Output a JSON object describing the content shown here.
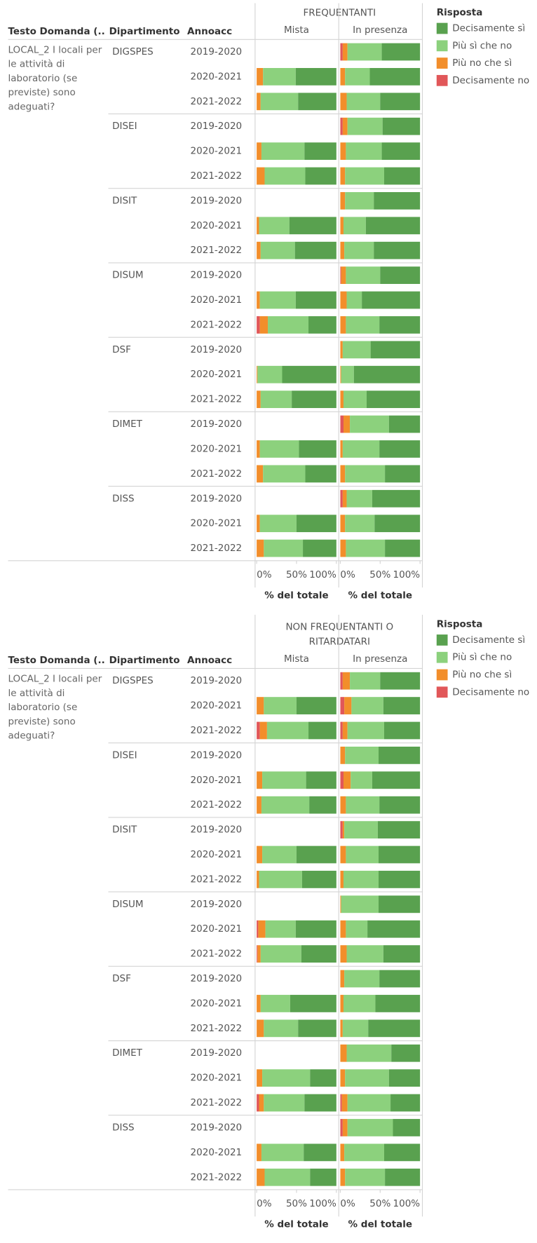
{
  "chart_data": [
    {
      "type": "stacked_bar",
      "title": "FREQUENTANTI",
      "row_headers": [
        "Testo Domanda (..",
        "Dipartimento",
        "Annoacc"
      ],
      "question": "LOCAL_2 I locali per le attività di laboratorio (se previste) sono adeguati?",
      "departments": [
        "DIGSPES",
        "DISEI",
        "DISIT",
        "DISUM",
        "DSF",
        "DIMET",
        "DISS"
      ],
      "years": [
        "2019-2020",
        "2020-2021",
        "2021-2022",
        "2019-2020",
        "2020-2021",
        "2021-2022",
        "2019-2020",
        "2020-2021",
        "2021-2022",
        "2019-2020",
        "2020-2021",
        "2021-2022",
        "2019-2020",
        "2020-2021",
        "2021-2022",
        "2019-2020",
        "2020-2021",
        "2021-2022",
        "2019-2020",
        "2020-2021",
        "2021-2022"
      ],
      "panels": [
        "Mista",
        "In presenza"
      ],
      "legend_title": "Risposta",
      "series": [
        {
          "name": "Decisamente sì",
          "color": "#59a14f",
          "values": [
            [
              null,
              51,
              48,
              null,
              40,
              39,
              null,
              59,
              52,
              null,
              51,
              35,
              null,
              68,
              56,
              null,
              47,
              39,
              null,
              50,
              42
            ],
            [
              48,
              63,
              50,
              47,
              48,
              45,
              58,
              68,
              58,
              50,
              73,
              51,
              62,
              83,
              67,
              39,
              51,
              44,
              60,
              57,
              44
            ]
          ]
        },
        {
          "name": "Più sì che no",
          "color": "#8cd17d",
          "values": [
            [
              null,
              41,
              47,
              null,
              54,
              51,
              null,
              38,
              43,
              null,
              45,
              51,
              null,
              31,
              39,
              null,
              49,
              53,
              null,
              46,
              49
            ],
            [
              43,
              31,
              42,
              44,
              45,
              49,
              36,
              28,
              37,
              43,
              19,
              42,
              35,
              16,
              29,
              49,
              46,
              50,
              32,
              37,
              49
            ]
          ]
        },
        {
          "name": "Più no che sì",
          "color": "#f28e2b",
          "values": [
            [
              null,
              8,
              5,
              null,
              6,
              10,
              null,
              3,
              5,
              null,
              4,
              10,
              null,
              1,
              5,
              null,
              4,
              8,
              null,
              4,
              9
            ],
            [
              6,
              6,
              8,
              6,
              7,
              6,
              6,
              4,
              5,
              6,
              8,
              7,
              3,
              1,
              4,
              8,
              3,
              6,
              5,
              6,
              7
            ]
          ]
        },
        {
          "name": "Decisamente no",
          "color": "#e15759",
          "values": [
            [
              null,
              0,
              0,
              null,
              0,
              0,
              null,
              0,
              0,
              null,
              0,
              4,
              null,
              0,
              0,
              null,
              0,
              0,
              null,
              0,
              0
            ],
            [
              3,
              0,
              0,
              3,
              0,
              0,
              0,
              0,
              0,
              1,
              0,
              0,
              0,
              0,
              0,
              4,
              0,
              0,
              3,
              0,
              0
            ]
          ]
        }
      ],
      "xlim": [
        0,
        100
      ],
      "xticks": [
        {
          "value": 0,
          "label": "0%"
        },
        {
          "value": 50,
          "label": "50%"
        },
        {
          "value": 100,
          "label": "100%"
        }
      ],
      "xlabel": "% del totale"
    },
    {
      "type": "stacked_bar",
      "title": "NON FREQUENTANTI O RITARDATARI",
      "row_headers": [
        "Testo Domanda (..",
        "Dipartimento",
        "Annoacc"
      ],
      "question": "LOCAL_2 I locali per le attività di laboratorio (se previste) sono adeguati?",
      "departments": [
        "DIGSPES",
        "DISEI",
        "DISIT",
        "DISUM",
        "DSF",
        "DIMET",
        "DISS"
      ],
      "years": [
        "2019-2020",
        "2020-2021",
        "2021-2022",
        "2019-2020",
        "2020-2021",
        "2021-2022",
        "2019-2020",
        "2020-2021",
        "2021-2022",
        "2019-2020",
        "2020-2021",
        "2021-2022",
        "2019-2020",
        "2020-2021",
        "2021-2022",
        "2019-2020",
        "2020-2021",
        "2021-2022",
        "2019-2020",
        "2020-2021",
        "2021-2022"
      ],
      "panels": [
        "Mista",
        "In presenza"
      ],
      "legend_title": "Risposta",
      "series": [
        {
          "name": "Decisamente sì",
          "color": "#59a14f",
          "values": [
            [
              null,
              50,
              35,
              null,
              38,
              34,
              null,
              50,
              43,
              null,
              51,
              44,
              null,
              58,
              48,
              null,
              33,
              40,
              null,
              41,
              33
            ],
            [
              50,
              46,
              45,
              52,
              60,
              51,
              53,
              52,
              52,
              52,
              66,
              46,
              51,
              56,
              65,
              36,
              39,
              37,
              34,
              45,
              44
            ]
          ]
        },
        {
          "name": "Più sì che no",
          "color": "#8cd17d",
          "values": [
            [
              null,
              41,
              52,
              null,
              55,
              60,
              null,
              43,
              54,
              null,
              38,
              51,
              null,
              37,
              43,
              null,
              60,
              51,
              null,
              53,
              57
            ],
            [
              38,
              40,
              46,
              42,
              27,
              42,
              42,
              41,
              44,
              47,
              27,
              46,
              44,
              40,
              32,
              56,
              55,
              54,
              57,
              50,
              50
            ]
          ]
        },
        {
          "name": "Più no che sì",
          "color": "#f28e2b",
          "values": [
            [
              null,
              9,
              9,
              null,
              7,
              6,
              null,
              7,
              3,
              null,
              9,
              4,
              null,
              5,
              9,
              null,
              7,
              6,
              null,
              6,
              10
            ],
            [
              9,
              9,
              6,
              6,
              9,
              7,
              2,
              7,
              4,
              1,
              7,
              8,
              5,
              4,
              3,
              8,
              6,
              7,
              6,
              5,
              6
            ]
          ]
        },
        {
          "name": "Decisamente no",
          "color": "#e15759",
          "values": [
            [
              null,
              0,
              4,
              null,
              0,
              0,
              null,
              0,
              0,
              null,
              2,
              1,
              null,
              0,
              0,
              null,
              0,
              3,
              null,
              0,
              0
            ],
            [
              3,
              5,
              3,
              0,
              4,
              0,
              3,
              0,
              0,
              0,
              0,
              0,
              0,
              0,
              0,
              0,
              0,
              2,
              3,
              0,
              0
            ]
          ]
        }
      ],
      "xlim": [
        0,
        100
      ],
      "xticks": [
        {
          "value": 0,
          "label": "0%"
        },
        {
          "value": 50,
          "label": "50%"
        },
        {
          "value": 100,
          "label": "100%"
        }
      ],
      "xlabel": "% del totale"
    }
  ]
}
